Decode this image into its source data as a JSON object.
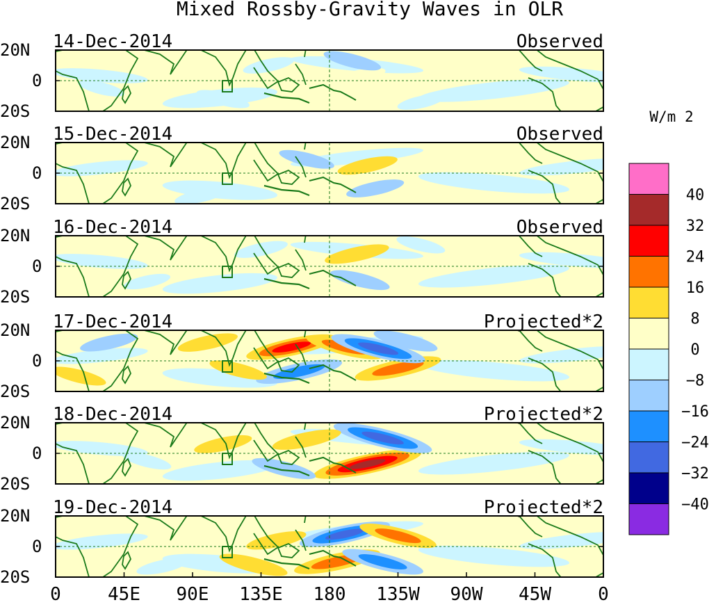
{
  "chart_data": {
    "type": "heatmap",
    "title": "Mixed Rossby-Gravity Waves in OLR",
    "units_label": "W/m 2",
    "x_tick_labels": [
      "0",
      "45E",
      "90E",
      "135E",
      "180",
      "135W",
      "90W",
      "45W",
      "0"
    ],
    "x_range_deg_east": [
      0,
      360
    ],
    "y_tick_labels": [
      "20N",
      "0",
      "20S"
    ],
    "y_range_deg": [
      -20,
      20
    ],
    "colorbar": {
      "labels": [
        "40",
        "32",
        "24",
        "16",
        "8",
        "0",
        "−8",
        "−16",
        "−24",
        "−32",
        "−40"
      ],
      "levels": [
        40,
        32,
        24,
        16,
        8,
        0,
        -8,
        -16,
        -24,
        -32,
        -40
      ],
      "colors": [
        "#ff6ec8",
        "#a52a2a",
        "#ff0000",
        "#ff7300",
        "#ffdd33",
        "#ffffc8",
        "#ccf5ff",
        "#9ecfff",
        "#1e90ff",
        "#4169e1",
        "#00008b",
        "#8a2be2"
      ]
    },
    "panels": [
      {
        "date": "14-Dec-2014",
        "label": "Observed",
        "anomalies": [
          {
            "lon": 200,
            "lat": 3,
            "value": 6
          },
          {
            "lon": 195,
            "lat": 13,
            "value": -9
          },
          {
            "lon": 140,
            "lat": 10,
            "value": -6
          },
          {
            "lon": 110,
            "lat": -12,
            "value": -7
          },
          {
            "lon": 240,
            "lat": -14,
            "value": -4
          },
          {
            "lon": 30,
            "lat": -5,
            "value": -4
          }
        ]
      },
      {
        "date": "15-Dec-2014",
        "label": "Observed",
        "anomalies": [
          {
            "lon": 205,
            "lat": 5,
            "value": 10
          },
          {
            "lon": 165,
            "lat": 9,
            "value": -8
          },
          {
            "lon": 210,
            "lat": -10,
            "value": -9
          },
          {
            "lon": 160,
            "lat": -14,
            "value": 6
          },
          {
            "lon": 95,
            "lat": -15,
            "value": -6
          }
        ]
      },
      {
        "date": "16-Dec-2014",
        "label": "Observed",
        "anomalies": [
          {
            "lon": 198,
            "lat": 8,
            "value": 12
          },
          {
            "lon": 200,
            "lat": -9,
            "value": -10
          },
          {
            "lon": 135,
            "lat": 11,
            "value": -7
          },
          {
            "lon": 240,
            "lat": 14,
            "value": -5
          },
          {
            "lon": 60,
            "lat": -10,
            "value": -4
          }
        ]
      },
      {
        "date": "17-Dec-2014",
        "label": "Projected*2",
        "anomalies": [
          {
            "lon": 155,
            "lat": 9,
            "value": 24
          },
          {
            "lon": 190,
            "lat": 9,
            "value": 18
          },
          {
            "lon": 225,
            "lat": -5,
            "value": 22
          },
          {
            "lon": 212,
            "lat": 8,
            "value": -26
          },
          {
            "lon": 160,
            "lat": -7,
            "value": -22
          },
          {
            "lon": 230,
            "lat": 13,
            "value": -12
          },
          {
            "lon": 100,
            "lat": 12,
            "value": 10
          },
          {
            "lon": 120,
            "lat": -6,
            "value": 9
          },
          {
            "lon": 35,
            "lat": 12,
            "value": -9
          },
          {
            "lon": 15,
            "lat": -10,
            "value": 8
          }
        ]
      },
      {
        "date": "18-Dec-2014",
        "label": "Projected*2",
        "anomalies": [
          {
            "lon": 205,
            "lat": -7,
            "value": 32
          },
          {
            "lon": 215,
            "lat": 10,
            "value": -28
          },
          {
            "lon": 165,
            "lat": 9,
            "value": 14
          },
          {
            "lon": 150,
            "lat": -10,
            "value": -12
          },
          {
            "lon": 110,
            "lat": 6,
            "value": 9
          },
          {
            "lon": 60,
            "lat": -5,
            "value": -5
          }
        ]
      },
      {
        "date": "19-Dec-2014",
        "label": "Projected*2",
        "anomalies": [
          {
            "lon": 185,
            "lat": -10,
            "value": 22
          },
          {
            "lon": 215,
            "lat": -10,
            "value": -20
          },
          {
            "lon": 190,
            "lat": 8,
            "value": -24
          },
          {
            "lon": 225,
            "lat": 7,
            "value": 18
          },
          {
            "lon": 145,
            "lat": 4,
            "value": 10
          },
          {
            "lon": 130,
            "lat": -12,
            "value": 14
          },
          {
            "lon": 70,
            "lat": -13,
            "value": -6
          }
        ]
      }
    ]
  }
}
